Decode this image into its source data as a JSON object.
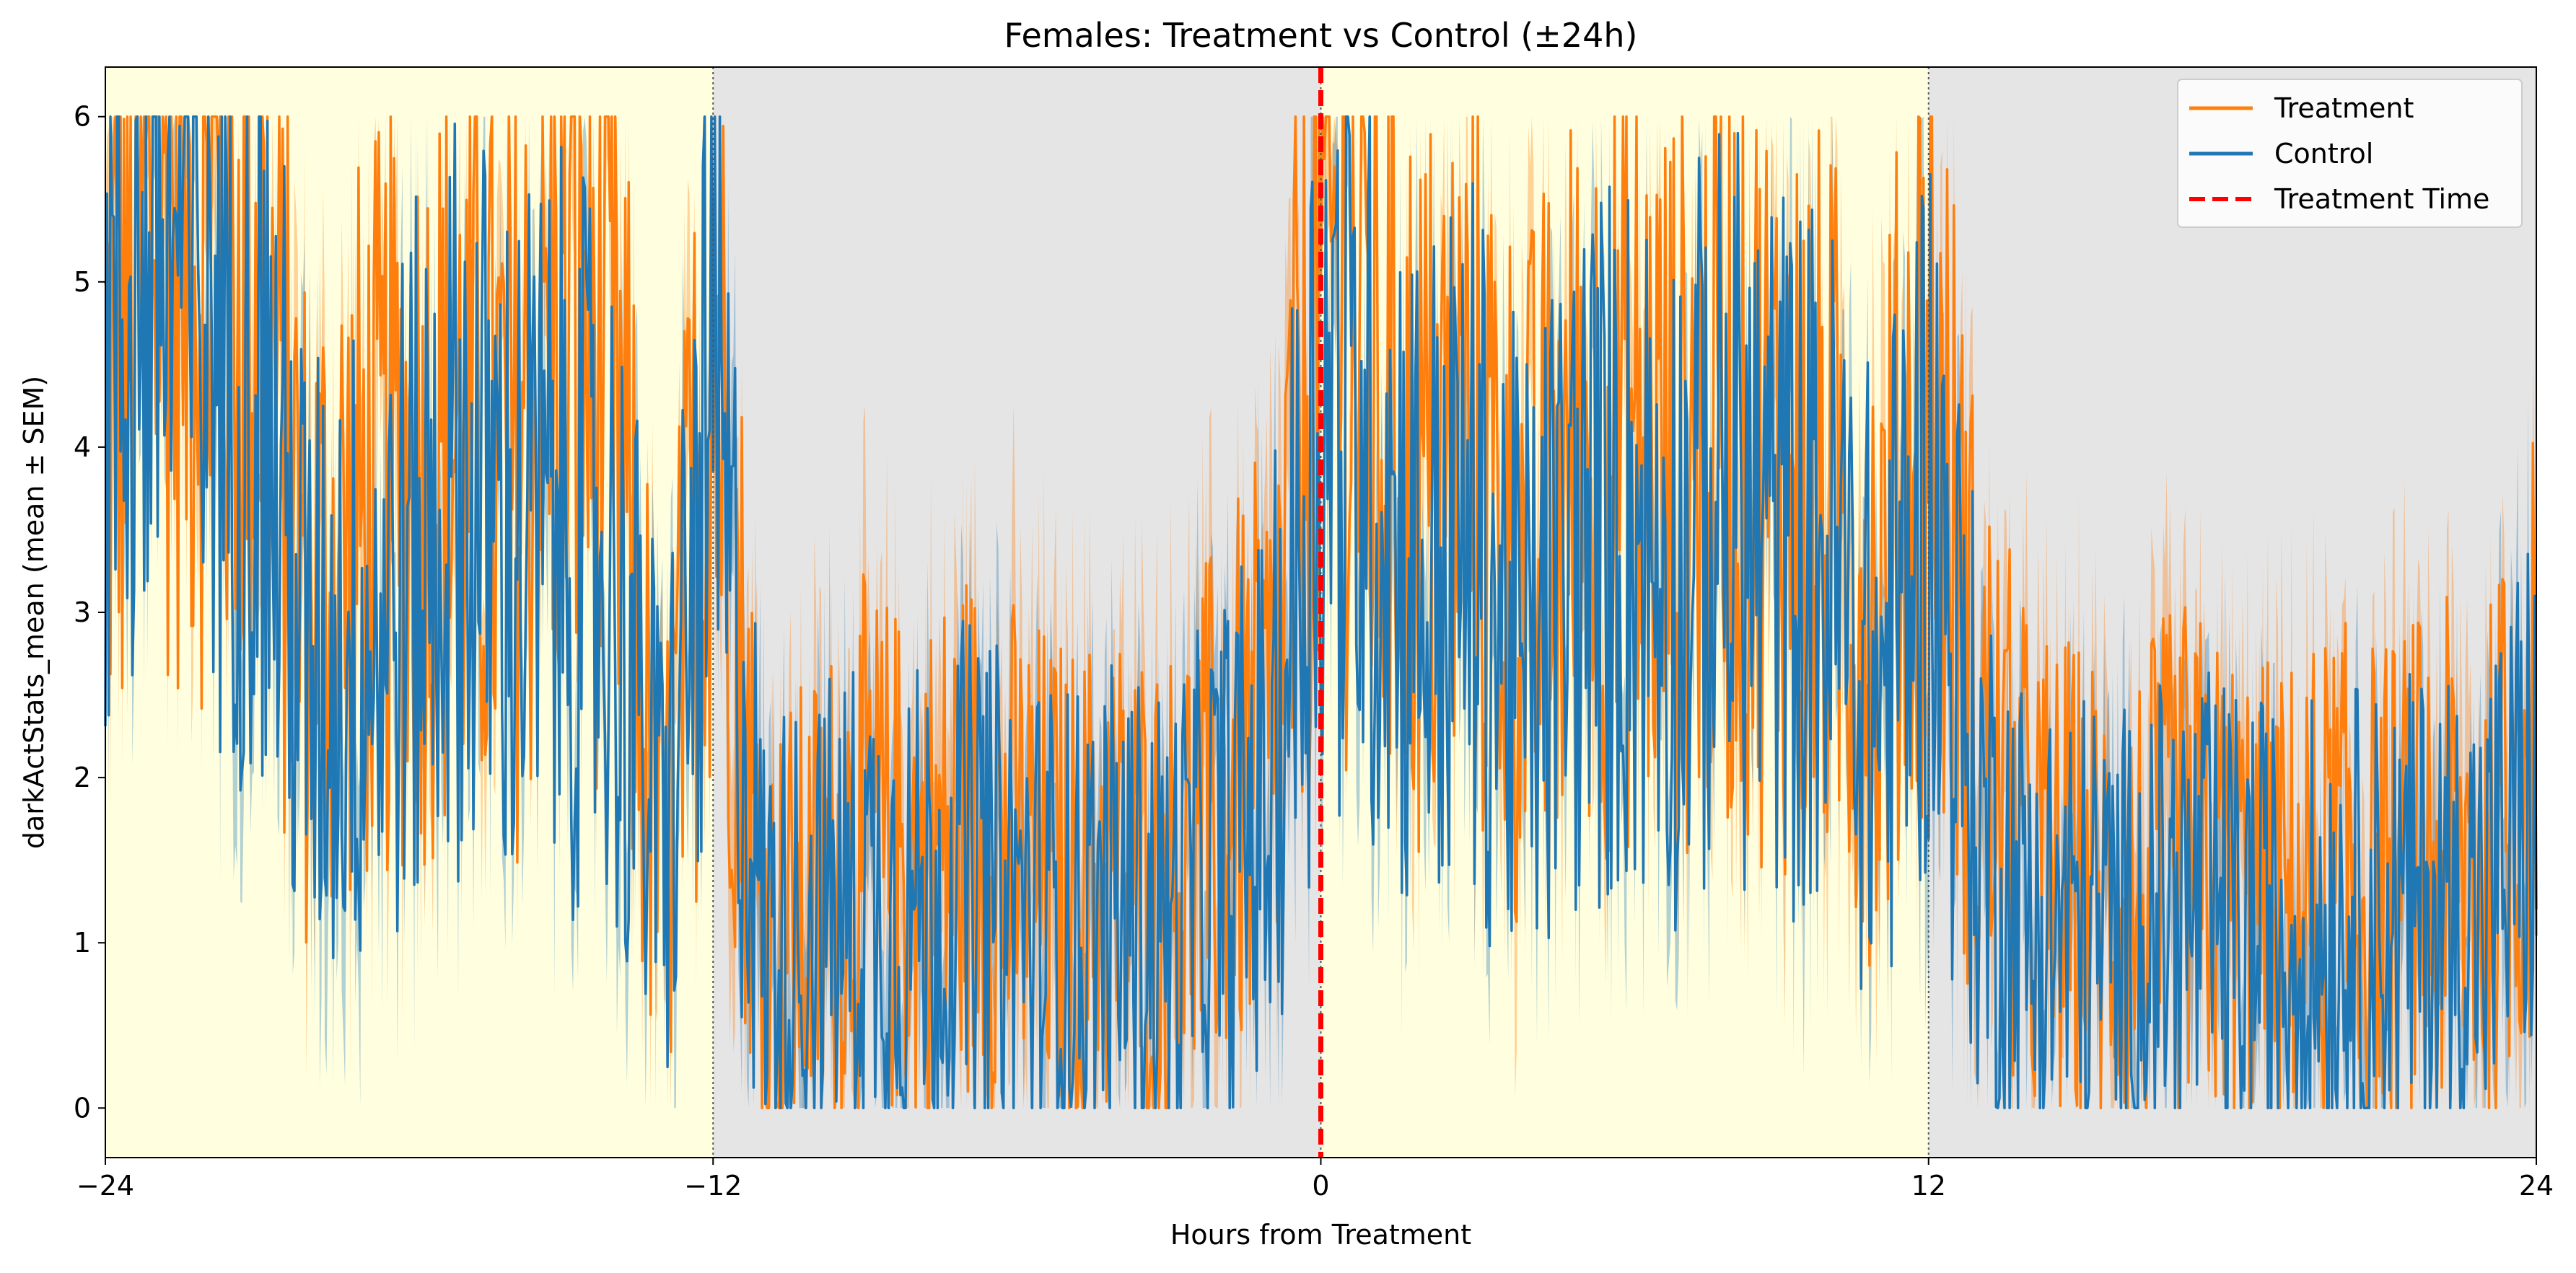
{
  "chart_data": {
    "type": "line",
    "title": "Females: Treatment vs Control (±24h)",
    "xlabel": "Hours from Treatment",
    "ylabel": "darkActStats_mean (mean ± SEM)",
    "xlim": [
      -24,
      24
    ],
    "ylim": [
      -0.3,
      6.3
    ],
    "x_ticks": [
      -24,
      -12,
      0,
      12,
      24
    ],
    "y_ticks": [
      0,
      1,
      2,
      3,
      4,
      5,
      6
    ],
    "grid": false,
    "legend_position": "top-right",
    "shaded_regions": [
      {
        "x0": -24,
        "x1": -12,
        "color": "#ffffe0",
        "meaning": "light"
      },
      {
        "x0": -12,
        "x1": 0,
        "color": "#e5e5e5",
        "meaning": "dark"
      },
      {
        "x0": 0,
        "x1": 12,
        "color": "#ffffe0",
        "meaning": "light"
      },
      {
        "x0": 12,
        "x1": 24,
        "color": "#e5e5e5",
        "meaning": "dark"
      }
    ],
    "boundary_lines": [
      -12,
      0,
      12
    ],
    "treatment_time": 0,
    "series": [
      {
        "name": "Treatment",
        "color": "#ff7f0e",
        "x": [
          -24,
          -23,
          -22,
          -21,
          -20,
          -19,
          -18,
          -17,
          -16,
          -15,
          -14,
          -13,
          -12,
          -11,
          -10,
          -9,
          -8,
          -7,
          -6,
          -5,
          -4,
          -3,
          -2,
          -1,
          0,
          1,
          2,
          3,
          4,
          5,
          6,
          7,
          8,
          9,
          10,
          11,
          12,
          13,
          14,
          15,
          16,
          17,
          18,
          19,
          20,
          21,
          22,
          23,
          24
        ],
        "mean": [
          4.2,
          5.6,
          5.3,
          5.0,
          3.0,
          3.5,
          3.8,
          4.0,
          3.8,
          4.8,
          4.5,
          1.2,
          4.8,
          0.9,
          1.2,
          1.6,
          1.4,
          1.7,
          1.5,
          1.3,
          1.4,
          1.3,
          1.8,
          2.2,
          5.2,
          4.4,
          3.7,
          4.0,
          3.1,
          3.8,
          4.0,
          3.8,
          4.2,
          3.8,
          3.6,
          2.9,
          4.6,
          2.2,
          1.4,
          1.3,
          1.2,
          1.5,
          1.3,
          1.2,
          1.4,
          1.3,
          1.5,
          1.4,
          2.3
        ],
        "sem": [
          0.6,
          0.4,
          0.5,
          0.6,
          0.7,
          0.7,
          0.7,
          0.6,
          0.6,
          0.5,
          0.6,
          0.6,
          0.6,
          0.7,
          0.7,
          0.7,
          0.7,
          0.8,
          0.8,
          0.7,
          0.7,
          0.7,
          0.7,
          0.8,
          0.5,
          0.6,
          0.7,
          0.7,
          0.8,
          0.7,
          0.7,
          0.7,
          0.7,
          0.8,
          0.8,
          0.8,
          0.6,
          0.7,
          0.6,
          0.6,
          0.7,
          0.7,
          0.6,
          0.6,
          0.6,
          0.6,
          0.7,
          0.7,
          0.7
        ]
      },
      {
        "name": "Control",
        "color": "#1f77b4",
        "x": [
          -24,
          -23,
          -22,
          -21,
          -20,
          -19,
          -18,
          -17,
          -16,
          -15,
          -14,
          -13,
          -12,
          -11,
          -10,
          -9,
          -8,
          -7,
          -6,
          -5,
          -4,
          -3,
          -2,
          -1,
          0,
          1,
          2,
          3,
          4,
          5,
          6,
          7,
          8,
          9,
          10,
          11,
          12,
          13,
          14,
          15,
          16,
          17,
          18,
          19,
          20,
          21,
          22,
          23,
          24
        ],
        "mean": [
          4.5,
          5.3,
          4.9,
          4.5,
          2.6,
          2.8,
          3.2,
          3.8,
          3.4,
          3.5,
          3.2,
          1.5,
          4.2,
          1.0,
          1.1,
          1.3,
          1.2,
          1.4,
          1.2,
          1.1,
          1.2,
          1.1,
          1.5,
          1.9,
          4.3,
          3.9,
          3.2,
          3.4,
          2.6,
          3.3,
          3.5,
          3.3,
          3.7,
          3.4,
          3.3,
          2.4,
          3.8,
          1.7,
          1.1,
          1.1,
          1.0,
          1.2,
          1.1,
          1.0,
          1.1,
          1.1,
          1.2,
          1.2,
          2.0
        ],
        "sem": [
          0.5,
          0.4,
          0.5,
          0.6,
          0.7,
          0.7,
          0.7,
          0.6,
          0.6,
          0.6,
          0.6,
          0.6,
          0.6,
          0.6,
          0.6,
          0.6,
          0.6,
          0.6,
          0.6,
          0.6,
          0.6,
          0.6,
          0.6,
          0.7,
          0.6,
          0.6,
          0.6,
          0.6,
          0.7,
          0.6,
          0.6,
          0.6,
          0.6,
          0.6,
          0.7,
          0.7,
          0.6,
          0.6,
          0.5,
          0.5,
          0.5,
          0.6,
          0.5,
          0.5,
          0.5,
          0.5,
          0.6,
          0.6,
          0.6
        ]
      }
    ],
    "legend": [
      "Treatment",
      "Control",
      "Treatment Time"
    ],
    "treatment_line_color": "#ff0000"
  }
}
